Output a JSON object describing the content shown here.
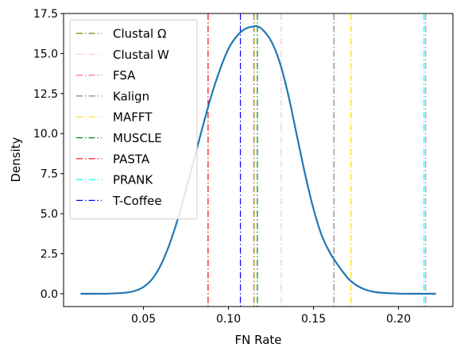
{
  "chart_data": {
    "type": "line",
    "xlabel": "FN Rate",
    "ylabel": "Density",
    "xlim": [
      0.003,
      0.232
    ],
    "ylim": [
      -0.8,
      17.5
    ],
    "xticks": [
      "0.05",
      "0.10",
      "0.15",
      "0.20"
    ],
    "yticks": [
      "0.0",
      "2.5",
      "5.0",
      "7.5",
      "10.0",
      "12.5",
      "15.0",
      "17.5"
    ],
    "grid": false,
    "legend_position": "upper-left",
    "density": {
      "color": "#1f77b4",
      "x": [
        0.013,
        0.02,
        0.03,
        0.04,
        0.045,
        0.05,
        0.055,
        0.06,
        0.065,
        0.07,
        0.075,
        0.08,
        0.085,
        0.09,
        0.095,
        0.1,
        0.105,
        0.11,
        0.115,
        0.117,
        0.12,
        0.125,
        0.13,
        0.135,
        0.14,
        0.145,
        0.15,
        0.155,
        0.16,
        0.165,
        0.17,
        0.175,
        0.18,
        0.185,
        0.19,
        0.2,
        0.21,
        0.222
      ],
      "y": [
        0.0,
        0.0,
        0.01,
        0.07,
        0.18,
        0.42,
        0.9,
        1.75,
        3.0,
        4.6,
        6.5,
        8.5,
        10.5,
        12.4,
        14.0,
        15.3,
        16.1,
        16.55,
        16.7,
        16.7,
        16.5,
        15.8,
        14.5,
        12.5,
        10.0,
        7.5,
        5.3,
        3.6,
        2.5,
        1.7,
        1.0,
        0.55,
        0.28,
        0.13,
        0.06,
        0.01,
        0.0,
        0.0
      ]
    },
    "series": [
      {
        "name": "Clustal Ω",
        "value": 0.115,
        "color": "#808000"
      },
      {
        "name": "Clustal W",
        "value": 0.131,
        "color": "#ffc0cb"
      },
      {
        "name": "FSA",
        "value": 0.216,
        "color": "#ff69b4"
      },
      {
        "name": "Kalign",
        "value": 0.162,
        "color": "#808080"
      },
      {
        "name": "MAFFT",
        "value": 0.172,
        "color": "#ffd700"
      },
      {
        "name": "MUSCLE",
        "value": 0.117,
        "color": "#008000"
      },
      {
        "name": "PASTA",
        "value": 0.088,
        "color": "#ff0000"
      },
      {
        "name": "PRANK",
        "value": 0.215,
        "color": "#00ffff"
      },
      {
        "name": "T-Coffee",
        "value": 0.107,
        "color": "#0000ff"
      }
    ]
  }
}
